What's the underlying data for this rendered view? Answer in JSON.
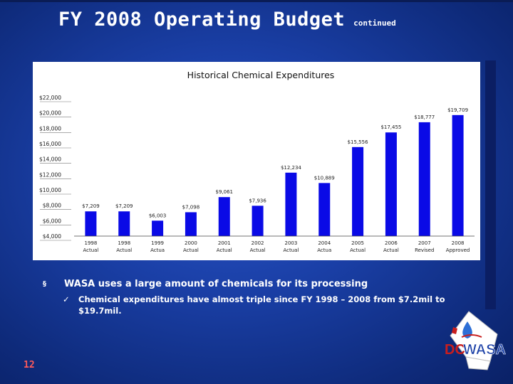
{
  "slide": {
    "title": "FY 2008 Operating Budget",
    "subtitle": "continued",
    "page_number": "12"
  },
  "bullets": {
    "main": "WASA uses a large amount of chemicals for its processing",
    "sub": "Chemical expenditures have almost triple since FY 1998 – 2008 from $7.2mil to $19.7mil.",
    "main_marker": "§",
    "sub_marker": "✓"
  },
  "logo": {
    "text_dc": "DC",
    "text_wasa": "WASA",
    "icon": "dc-map-drop-icon"
  },
  "colors": {
    "bar": "#0a0ae6",
    "title_text": "#ffffff",
    "page_number": "#ff5a5a"
  },
  "chart_data": {
    "type": "bar",
    "title": "Historical Chemical Expenditures",
    "categories": [
      [
        "1998",
        "Actual"
      ],
      [
        "1998",
        "Actual"
      ],
      [
        "1999",
        "Actua"
      ],
      [
        "2000",
        "Actual"
      ],
      [
        "2001",
        "Actual"
      ],
      [
        "2002",
        "Actual"
      ],
      [
        "2003",
        "Actual"
      ],
      [
        "2004",
        "Actua"
      ],
      [
        "2005",
        "Actual"
      ],
      [
        "2006",
        "Actual"
      ],
      [
        "2007",
        "Revised"
      ],
      [
        "2008",
        "Approved"
      ]
    ],
    "values": [
      7209,
      7209,
      6003,
      7098,
      9061,
      7936,
      12234,
      10889,
      15556,
      17455,
      18777,
      19709
    ],
    "value_labels": [
      "$7,209",
      "$7,209",
      "$6,003",
      "$7,098",
      "$9,061",
      "$7,936",
      "$12,234",
      "$10,889",
      "$15,556",
      "$17,455",
      "$18,777",
      "$19,709"
    ],
    "yticks": [
      "$4,000",
      "$6,000",
      "$8,000",
      "$10,000",
      "$12,000",
      "$14,000",
      "$16,000",
      "$18,000",
      "$20,000",
      "$22,000"
    ],
    "ytick_values": [
      4000,
      6000,
      8000,
      10000,
      12000,
      14000,
      16000,
      18000,
      20000,
      22000
    ],
    "ylim": [
      4000,
      22000
    ],
    "xlabel": "",
    "ylabel": "",
    "grid": false,
    "legend": "none"
  }
}
